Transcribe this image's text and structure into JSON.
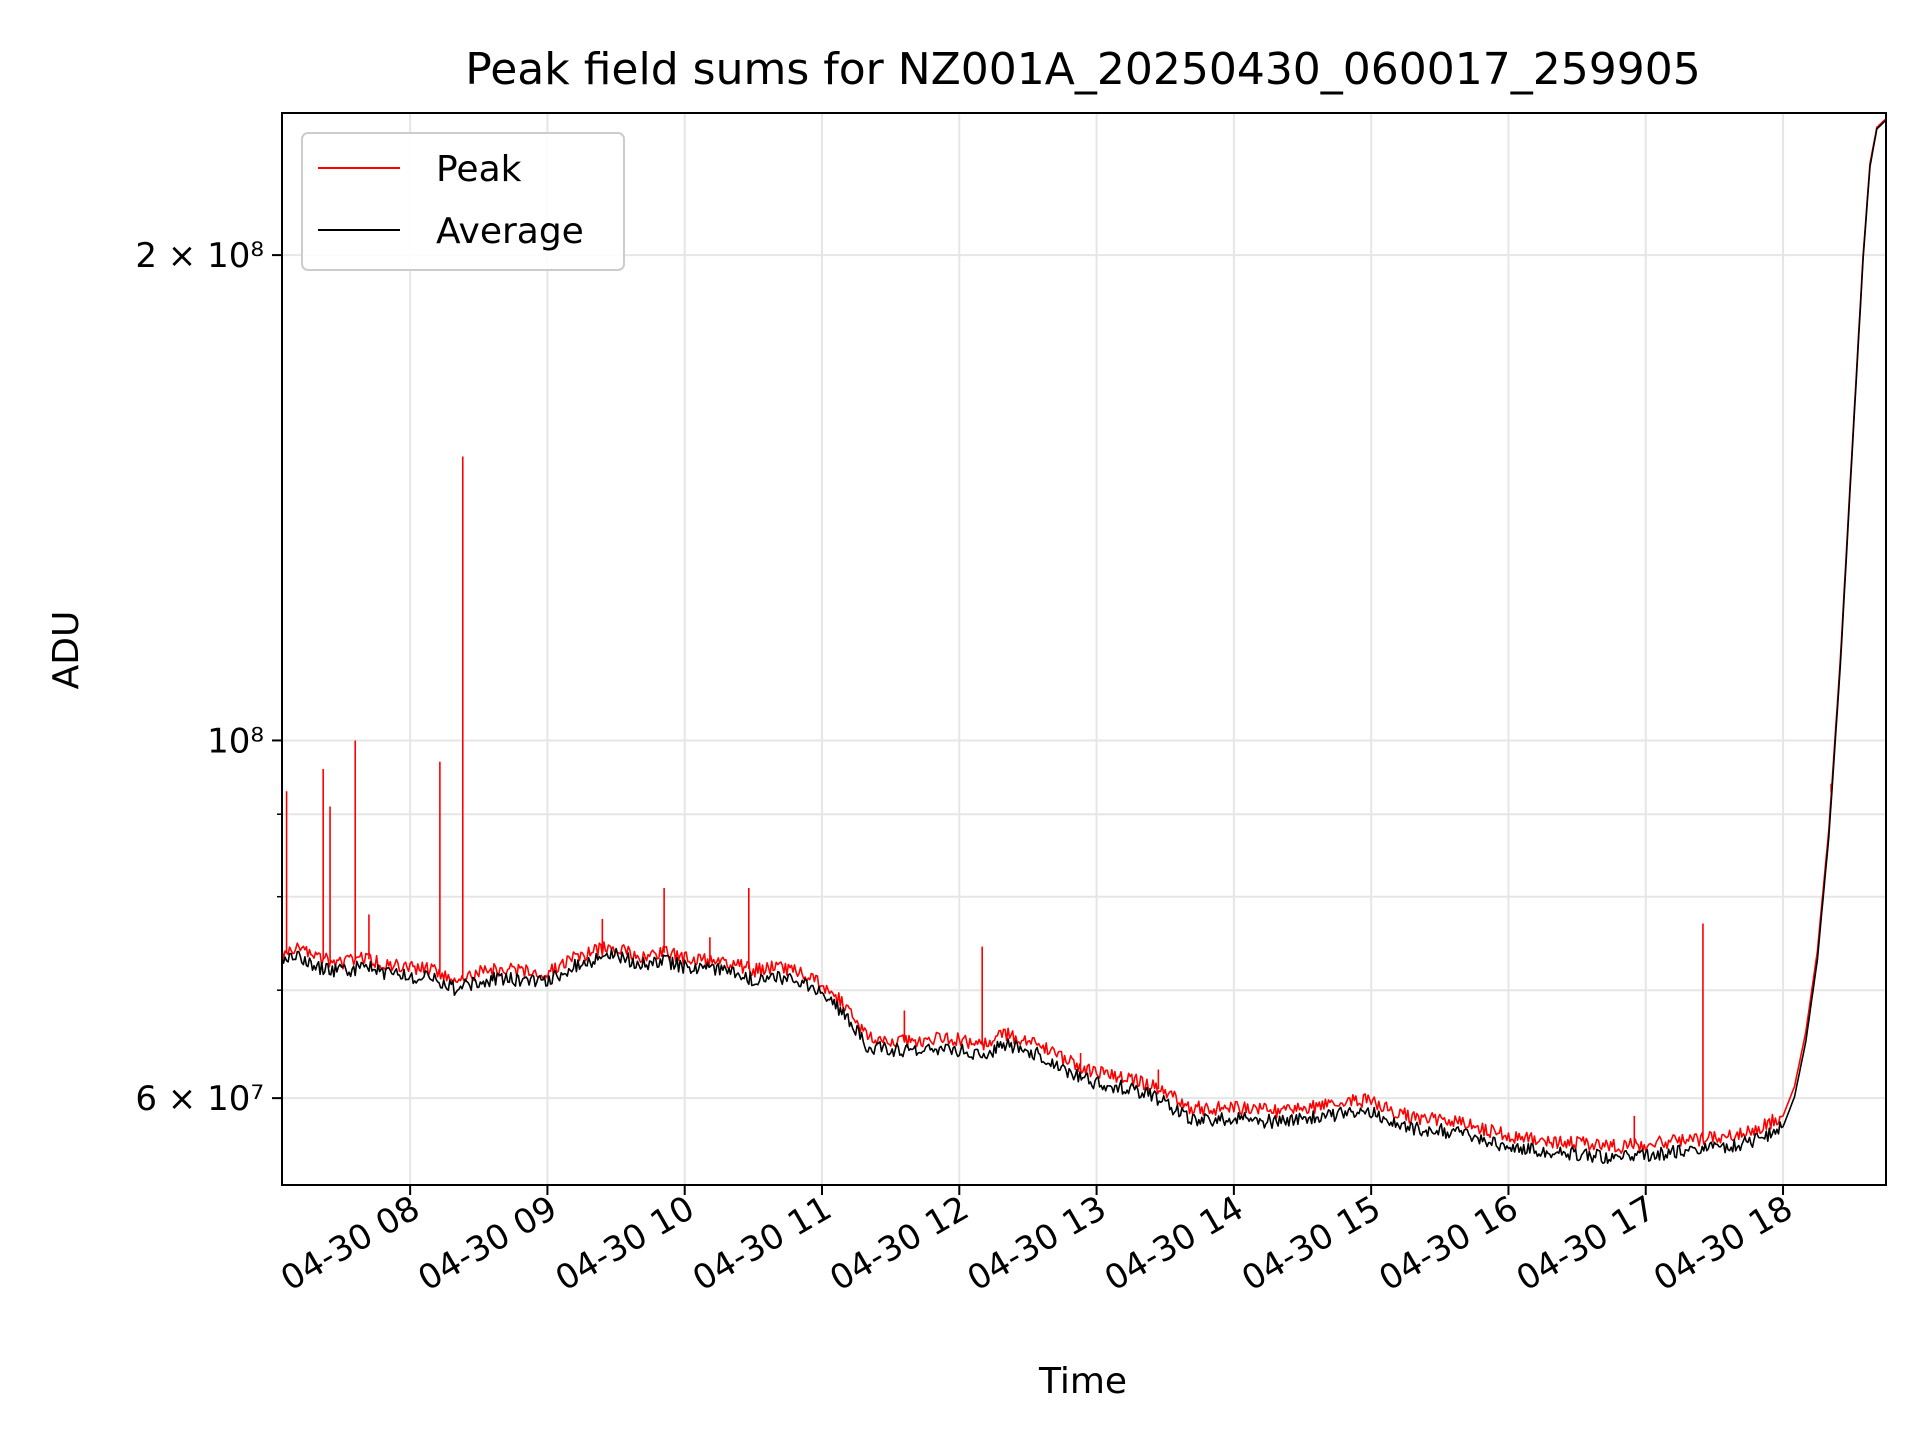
{
  "chart_data": {
    "type": "line",
    "title": "Peak field sums for NZ001A_20250430_060017_259905",
    "xlabel": "Time",
    "ylabel": "ADU",
    "y_scale": "log",
    "ylim": [
      53000000,
      245000000
    ],
    "xlim": [
      "2025-04-30 07:04",
      "2025-04-30 18:45"
    ],
    "grid": true,
    "legend_position": "upper left",
    "x_ticks": [
      {
        "value": "2025-04-30 08:00",
        "label": "04-30 08"
      },
      {
        "value": "2025-04-30 09:00",
        "label": "04-30 09"
      },
      {
        "value": "2025-04-30 10:00",
        "label": "04-30 10"
      },
      {
        "value": "2025-04-30 11:00",
        "label": "04-30 11"
      },
      {
        "value": "2025-04-30 12:00",
        "label": "04-30 12"
      },
      {
        "value": "2025-04-30 13:00",
        "label": "04-30 13"
      },
      {
        "value": "2025-04-30 14:00",
        "label": "04-30 14"
      },
      {
        "value": "2025-04-30 15:00",
        "label": "04-30 15"
      },
      {
        "value": "2025-04-30 16:00",
        "label": "04-30 16"
      },
      {
        "value": "2025-04-30 17:00",
        "label": "04-30 17"
      },
      {
        "value": "2025-04-30 18:00",
        "label": "04-30 18"
      }
    ],
    "y_ticks_labeled": [
      {
        "value": 60000000,
        "label": "6 × 10⁷"
      },
      {
        "value": 100000000,
        "label": "10⁸"
      },
      {
        "value": 200000000,
        "label": "2 × 10⁸"
      }
    ],
    "y_minor_gridlines": [
      70000000,
      80000000,
      90000000
    ],
    "series": [
      {
        "name": "Peak",
        "color": "#ff0000",
        "points": [
          [
            "2025-04-30 07:04",
            73500000
          ],
          [
            "2025-04-30 07:10",
            74500000
          ],
          [
            "2025-04-30 07:20",
            73200000
          ],
          [
            "2025-04-30 07:30",
            72800000
          ],
          [
            "2025-04-30 07:40",
            73300000
          ],
          [
            "2025-04-30 07:50",
            72600000
          ],
          [
            "2025-04-30 08:00",
            72300000
          ],
          [
            "2025-04-30 08:10",
            72100000
          ],
          [
            "2025-04-30 08:20",
            71000000
          ],
          [
            "2025-04-30 08:30",
            71800000
          ],
          [
            "2025-04-30 08:40",
            72100000
          ],
          [
            "2025-04-30 08:50",
            71900000
          ],
          [
            "2025-04-30 09:00",
            71800000
          ],
          [
            "2025-04-30 09:10",
            73200000
          ],
          [
            "2025-04-30 09:20",
            74000000
          ],
          [
            "2025-04-30 09:30",
            74600000
          ],
          [
            "2025-04-30 09:40",
            73500000
          ],
          [
            "2025-04-30 09:50",
            73900000
          ],
          [
            "2025-04-30 10:00",
            73300000
          ],
          [
            "2025-04-30 10:10",
            73000000
          ],
          [
            "2025-04-30 10:20",
            72800000
          ],
          [
            "2025-04-30 10:30",
            72000000
          ],
          [
            "2025-04-30 10:40",
            72300000
          ],
          [
            "2025-04-30 10:50",
            71900000
          ],
          [
            "2025-04-30 11:00",
            70700000
          ],
          [
            "2025-04-30 11:10",
            68500000
          ],
          [
            "2025-04-30 11:20",
            65400000
          ],
          [
            "2025-04-30 11:30",
            65200000
          ],
          [
            "2025-04-30 11:40",
            65000000
          ],
          [
            "2025-04-30 11:50",
            65300000
          ],
          [
            "2025-04-30 12:00",
            65200000
          ],
          [
            "2025-04-30 12:10",
            64700000
          ],
          [
            "2025-04-30 12:20",
            65700000
          ],
          [
            "2025-04-30 12:30",
            65200000
          ],
          [
            "2025-04-30 12:40",
            64100000
          ],
          [
            "2025-04-30 12:50",
            63000000
          ],
          [
            "2025-04-30 13:00",
            62200000
          ],
          [
            "2025-04-30 13:10",
            61900000
          ],
          [
            "2025-04-30 13:20",
            61400000
          ],
          [
            "2025-04-30 13:30",
            60500000
          ],
          [
            "2025-04-30 13:40",
            59200000
          ],
          [
            "2025-04-30 13:50",
            59100000
          ],
          [
            "2025-04-30 14:00",
            59200000
          ],
          [
            "2025-04-30 14:10",
            59000000
          ],
          [
            "2025-04-30 14:20",
            58900000
          ],
          [
            "2025-04-30 14:30",
            59100000
          ],
          [
            "2025-04-30 14:40",
            59400000
          ],
          [
            "2025-04-30 14:50",
            59700000
          ],
          [
            "2025-04-30 15:00",
            59800000
          ],
          [
            "2025-04-30 15:10",
            58800000
          ],
          [
            "2025-04-30 15:20",
            58300000
          ],
          [
            "2025-04-30 15:30",
            58200000
          ],
          [
            "2025-04-30 15:40",
            57900000
          ],
          [
            "2025-04-30 15:50",
            57400000
          ],
          [
            "2025-04-30 16:00",
            56900000
          ],
          [
            "2025-04-30 16:10",
            56600000
          ],
          [
            "2025-04-30 16:20",
            56400000
          ],
          [
            "2025-04-30 16:30",
            56300000
          ],
          [
            "2025-04-30 16:40",
            56100000
          ],
          [
            "2025-04-30 16:50",
            56000000
          ],
          [
            "2025-04-30 17:00",
            56200000
          ],
          [
            "2025-04-30 17:10",
            56400000
          ],
          [
            "2025-04-30 17:20",
            56500000
          ],
          [
            "2025-04-30 17:30",
            56800000
          ],
          [
            "2025-04-30 17:40",
            57000000
          ],
          [
            "2025-04-30 17:50",
            57500000
          ],
          [
            "2025-04-30 18:00",
            58500000
          ],
          [
            "2025-04-30 18:05",
            61000000
          ],
          [
            "2025-04-30 18:10",
            66000000
          ],
          [
            "2025-04-30 18:15",
            74000000
          ],
          [
            "2025-04-30 18:20",
            88000000
          ],
          [
            "2025-04-30 18:25",
            112000000
          ],
          [
            "2025-04-30 18:30",
            150000000
          ],
          [
            "2025-04-30 18:35",
            200000000
          ],
          [
            "2025-04-30 18:38",
            228000000
          ],
          [
            "2025-04-30 18:41",
            240000000
          ],
          [
            "2025-04-30 18:45",
            243000000
          ]
        ],
        "spikes": [
          [
            "2025-04-30 07:06",
            93000000
          ],
          [
            "2025-04-30 07:22",
            96000000
          ],
          [
            "2025-04-30 07:25",
            91000000
          ],
          [
            "2025-04-30 07:36",
            100000000
          ],
          [
            "2025-04-30 07:42",
            78000000
          ],
          [
            "2025-04-30 08:13",
            97000000
          ],
          [
            "2025-04-30 08:23",
            150000000
          ],
          [
            "2025-04-30 09:24",
            77500000
          ],
          [
            "2025-04-30 09:51",
            81000000
          ],
          [
            "2025-04-30 10:11",
            75500000
          ],
          [
            "2025-04-30 10:28",
            81000000
          ],
          [
            "2025-04-30 11:36",
            68000000
          ],
          [
            "2025-04-30 12:10",
            74500000
          ],
          [
            "2025-04-30 12:53",
            64000000
          ],
          [
            "2025-04-30 13:27",
            62500000
          ],
          [
            "2025-04-30 16:55",
            58500000
          ],
          [
            "2025-04-30 17:25",
            77000000
          ],
          [
            "2025-04-30 18:21",
            94000000
          ]
        ]
      },
      {
        "name": "Average",
        "color": "#000000",
        "points": [
          [
            "2025-04-30 07:04",
            72600000
          ],
          [
            "2025-04-30 07:10",
            73600000
          ],
          [
            "2025-04-30 07:20",
            72300000
          ],
          [
            "2025-04-30 07:30",
            71900000
          ],
          [
            "2025-04-30 07:40",
            72400000
          ],
          [
            "2025-04-30 07:50",
            71700000
          ],
          [
            "2025-04-30 08:00",
            71400000
          ],
          [
            "2025-04-30 08:10",
            71200000
          ],
          [
            "2025-04-30 08:20",
            70100000
          ],
          [
            "2025-04-30 08:30",
            70900000
          ],
          [
            "2025-04-30 08:40",
            71200000
          ],
          [
            "2025-04-30 08:50",
            71000000
          ],
          [
            "2025-04-30 09:00",
            70900000
          ],
          [
            "2025-04-30 09:10",
            72300000
          ],
          [
            "2025-04-30 09:20",
            73100000
          ],
          [
            "2025-04-30 09:30",
            73700000
          ],
          [
            "2025-04-30 09:40",
            72600000
          ],
          [
            "2025-04-30 09:50",
            73000000
          ],
          [
            "2025-04-30 10:00",
            72400000
          ],
          [
            "2025-04-30 10:10",
            72100000
          ],
          [
            "2025-04-30 10:20",
            71900000
          ],
          [
            "2025-04-30 10:30",
            71100000
          ],
          [
            "2025-04-30 10:40",
            71400000
          ],
          [
            "2025-04-30 10:50",
            71000000
          ],
          [
            "2025-04-30 11:00",
            69800000
          ],
          [
            "2025-04-30 11:10",
            67600000
          ],
          [
            "2025-04-30 11:20",
            64500000
          ],
          [
            "2025-04-30 11:30",
            64300000
          ],
          [
            "2025-04-30 11:40",
            64100000
          ],
          [
            "2025-04-30 11:50",
            64400000
          ],
          [
            "2025-04-30 12:00",
            64300000
          ],
          [
            "2025-04-30 12:10",
            63800000
          ],
          [
            "2025-04-30 12:20",
            64800000
          ],
          [
            "2025-04-30 12:30",
            64300000
          ],
          [
            "2025-04-30 12:40",
            63200000
          ],
          [
            "2025-04-30 12:50",
            62100000
          ],
          [
            "2025-04-30 13:00",
            61300000
          ],
          [
            "2025-04-30 13:10",
            61000000
          ],
          [
            "2025-04-30 13:20",
            60500000
          ],
          [
            "2025-04-30 13:30",
            59600000
          ],
          [
            "2025-04-30 13:40",
            58300000
          ],
          [
            "2025-04-30 13:50",
            58200000
          ],
          [
            "2025-04-30 14:00",
            58300000
          ],
          [
            "2025-04-30 14:10",
            58100000
          ],
          [
            "2025-04-30 14:20",
            58000000
          ],
          [
            "2025-04-30 14:30",
            58200000
          ],
          [
            "2025-04-30 14:40",
            58500000
          ],
          [
            "2025-04-30 14:50",
            58800000
          ],
          [
            "2025-04-30 15:00",
            58900000
          ],
          [
            "2025-04-30 15:10",
            57900000
          ],
          [
            "2025-04-30 15:20",
            57400000
          ],
          [
            "2025-04-30 15:30",
            57300000
          ],
          [
            "2025-04-30 15:40",
            57000000
          ],
          [
            "2025-04-30 15:50",
            56500000
          ],
          [
            "2025-04-30 16:00",
            56000000
          ],
          [
            "2025-04-30 16:10",
            55700000
          ],
          [
            "2025-04-30 16:20",
            55500000
          ],
          [
            "2025-04-30 16:30",
            55400000
          ],
          [
            "2025-04-30 16:40",
            55200000
          ],
          [
            "2025-04-30 16:50",
            55100000
          ],
          [
            "2025-04-30 17:00",
            55300000
          ],
          [
            "2025-04-30 17:10",
            55500000
          ],
          [
            "2025-04-30 17:20",
            55600000
          ],
          [
            "2025-04-30 17:30",
            55900000
          ],
          [
            "2025-04-30 17:40",
            56100000
          ],
          [
            "2025-04-30 17:50",
            56600000
          ],
          [
            "2025-04-30 18:00",
            57600000
          ],
          [
            "2025-04-30 18:05",
            60100000
          ],
          [
            "2025-04-30 18:10",
            65100000
          ],
          [
            "2025-04-30 18:15",
            73100000
          ],
          [
            "2025-04-30 18:20",
            87100000
          ],
          [
            "2025-04-30 18:25",
            111000000
          ],
          [
            "2025-04-30 18:30",
            149000000
          ],
          [
            "2025-04-30 18:35",
            199000000
          ],
          [
            "2025-04-30 18:38",
            227000000
          ],
          [
            "2025-04-30 18:41",
            239500000
          ],
          [
            "2025-04-30 18:45",
            242500000
          ]
        ]
      }
    ]
  }
}
